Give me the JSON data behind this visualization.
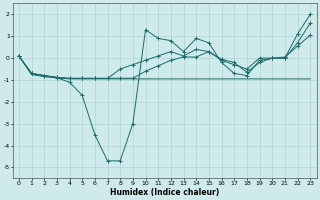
{
  "xlabel": "Humidex (Indice chaleur)",
  "background_color": "#ceeaea",
  "grid_color": "#aed4d4",
  "line_color": "#1a6b6b",
  "xlim": [
    -0.5,
    23.5
  ],
  "ylim": [
    -5.5,
    2.5
  ],
  "yticks": [
    -5,
    -4,
    -3,
    -2,
    -1,
    0,
    1,
    2
  ],
  "xticks": [
    0,
    1,
    2,
    3,
    4,
    5,
    6,
    7,
    8,
    9,
    10,
    11,
    12,
    13,
    14,
    15,
    16,
    17,
    18,
    19,
    20,
    21,
    22,
    23
  ],
  "series": [
    {
      "x": [
        0,
        1,
        2,
        3,
        4,
        5,
        6,
        7,
        8,
        9,
        10,
        11,
        12,
        13,
        14,
        15,
        16,
        17,
        18,
        19,
        20,
        21,
        22,
        23
      ],
      "y": [
        0.1,
        -0.7,
        -0.8,
        -0.9,
        -1.1,
        -1.7,
        -3.5,
        -4.7,
        -4.7,
        -3.0,
        1.3,
        0.9,
        0.8,
        0.3,
        0.9,
        0.7,
        -0.2,
        -0.7,
        -0.8,
        -0.1,
        0.0,
        0.0,
        1.1,
        2.0
      ],
      "marker": "+"
    },
    {
      "x": [
        0,
        1,
        2,
        3,
        4,
        5,
        6,
        7,
        8,
        9,
        10,
        11,
        12,
        13,
        14,
        15,
        16,
        17,
        18,
        19,
        20,
        21,
        22,
        23
      ],
      "y": [
        0.1,
        -0.75,
        -0.85,
        -0.9,
        -0.95,
        -0.95,
        -0.95,
        -0.95,
        -0.95,
        -0.95,
        -0.95,
        -0.95,
        -0.95,
        -0.95,
        -0.95,
        -0.95,
        -0.95,
        -0.95,
        -0.95,
        -0.95,
        -0.95,
        -0.95,
        -0.95,
        -0.95
      ],
      "marker": null
    },
    {
      "x": [
        0,
        1,
        2,
        3,
        4,
        5,
        6,
        7,
        8,
        9,
        10,
        11,
        12,
        13,
        14,
        15,
        16,
        17,
        18,
        19,
        20,
        21,
        22,
        23
      ],
      "y": [
        0.1,
        -0.7,
        -0.8,
        -0.88,
        -0.93,
        -0.93,
        -0.93,
        -0.93,
        -0.5,
        -0.3,
        -0.1,
        0.1,
        0.3,
        0.1,
        0.4,
        0.3,
        -0.1,
        -0.3,
        -0.5,
        0.0,
        0.0,
        0.0,
        0.7,
        1.6
      ],
      "marker": "+"
    },
    {
      "x": [
        0,
        1,
        2,
        3,
        4,
        5,
        6,
        7,
        8,
        9,
        10,
        11,
        12,
        13,
        14,
        15,
        16,
        17,
        18,
        19,
        20,
        21,
        22,
        23
      ],
      "y": [
        0.1,
        -0.7,
        -0.8,
        -0.88,
        -0.92,
        -0.92,
        -0.92,
        -0.92,
        -0.92,
        -0.92,
        -0.6,
        -0.35,
        -0.1,
        0.05,
        0.05,
        0.3,
        -0.05,
        -0.2,
        -0.65,
        -0.2,
        0.0,
        0.05,
        0.55,
        1.05
      ],
      "marker": "+"
    }
  ]
}
